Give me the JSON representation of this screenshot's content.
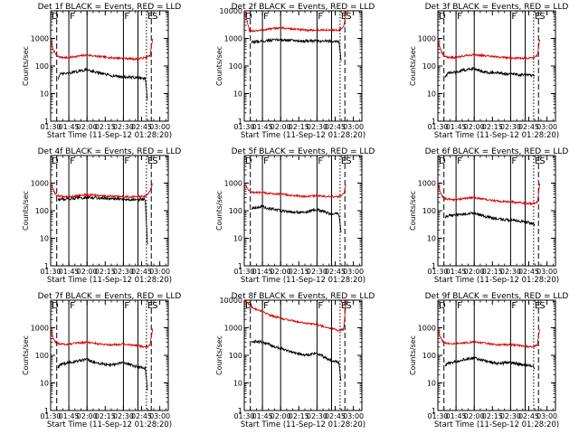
{
  "colors": {
    "events": "#000000",
    "lld": "#dd0000",
    "axis": "#000000",
    "background": "#ffffff"
  },
  "xlabel": "Start Time (11-Sep-12 01:28:20)",
  "ylabel": "Counts/sec",
  "x_tick_labels": [
    "01:30",
    "01:45",
    "02:00",
    "02:15",
    "02:30",
    "02:45",
    "03:00"
  ],
  "y_tick_labels": [
    "1",
    "10",
    "100",
    "1000",
    "10000"
  ],
  "chart_data": [
    {
      "type": "line",
      "title": "Det 1f BLACK = Events, RED = LLD",
      "x_unit": "minutes after 01:30",
      "xlim": [
        0,
        97
      ],
      "ylim": [
        1,
        10000
      ],
      "ylog": true,
      "y_max_label": "1000",
      "markers": [
        {
          "label": "D",
          "x": 0,
          "style": "solid"
        },
        {
          "label": "",
          "x": 5,
          "style": "dashed"
        },
        {
          "label": "F",
          "x": 15,
          "style": "solid"
        },
        {
          "label": "",
          "x": 30,
          "style": "solid"
        },
        {
          "label": "F",
          "x": 60,
          "style": "solid"
        },
        {
          "label": "",
          "x": 72,
          "style": "solid"
        },
        {
          "label": "E",
          "x": 79,
          "style": "dotted"
        },
        {
          "label": "S",
          "x": 83,
          "style": "dashed"
        }
      ],
      "series": [
        {
          "name": "LLD",
          "color": "red",
          "x": [
            0,
            2,
            4,
            5,
            8,
            15,
            20,
            30,
            40,
            50,
            60,
            70,
            78,
            82,
            84
          ],
          "values": [
            900,
            400,
            270,
            230,
            210,
            200,
            220,
            250,
            220,
            200,
            190,
            180,
            200,
            240,
            900
          ]
        },
        {
          "name": "Events",
          "color": "black",
          "x": [
            6,
            8,
            15,
            20,
            30,
            40,
            50,
            60,
            70,
            78,
            80
          ],
          "values": [
            35,
            50,
            55,
            60,
            75,
            55,
            45,
            40,
            38,
            36,
            5
          ]
        }
      ]
    },
    {
      "type": "line",
      "title": "Det 2f BLACK = Events, RED = LLD",
      "x_unit": "minutes after 01:30",
      "xlim": [
        0,
        97
      ],
      "ylim": [
        1,
        10000
      ],
      "ylog": true,
      "y_max_label": "10000",
      "markers": [
        {
          "label": "D",
          "x": 0,
          "style": "solid"
        },
        {
          "label": "",
          "x": 5,
          "style": "dashed"
        },
        {
          "label": "F",
          "x": 15,
          "style": "solid"
        },
        {
          "label": "",
          "x": 30,
          "style": "solid"
        },
        {
          "label": "F",
          "x": 60,
          "style": "solid"
        },
        {
          "label": "",
          "x": 72,
          "style": "solid"
        },
        {
          "label": "E",
          "x": 79,
          "style": "dotted"
        },
        {
          "label": "S",
          "x": 83,
          "style": "dashed"
        }
      ],
      "series": [
        {
          "name": "LLD",
          "color": "red",
          "x": [
            0,
            2,
            4,
            5,
            8,
            15,
            20,
            30,
            40,
            50,
            60,
            70,
            78,
            82,
            84
          ],
          "values": [
            10000,
            5000,
            2000,
            1800,
            1900,
            2000,
            2200,
            2400,
            2200,
            2000,
            2000,
            2000,
            2000,
            2500,
            10000
          ]
        },
        {
          "name": "Events",
          "color": "black",
          "x": [
            6,
            8,
            15,
            20,
            30,
            40,
            50,
            60,
            70,
            78,
            80
          ],
          "values": [
            700,
            750,
            800,
            850,
            900,
            850,
            800,
            800,
            800,
            800,
            150
          ]
        }
      ]
    },
    {
      "type": "line",
      "title": "Det 3f BLACK = Events, RED = LLD",
      "x_unit": "minutes after 01:30",
      "xlim": [
        0,
        97
      ],
      "ylim": [
        1,
        10000
      ],
      "ylog": true,
      "y_max_label": "1000",
      "markers": [
        {
          "label": "D",
          "x": 0,
          "style": "solid"
        },
        {
          "label": "",
          "x": 5,
          "style": "dashed"
        },
        {
          "label": "F",
          "x": 15,
          "style": "solid"
        },
        {
          "label": "",
          "x": 30,
          "style": "solid"
        },
        {
          "label": "F",
          "x": 60,
          "style": "solid"
        },
        {
          "label": "",
          "x": 72,
          "style": "solid"
        },
        {
          "label": "E",
          "x": 79,
          "style": "dotted"
        },
        {
          "label": "S",
          "x": 83,
          "style": "dashed"
        }
      ],
      "series": [
        {
          "name": "LLD",
          "color": "red",
          "x": [
            0,
            2,
            4,
            5,
            8,
            15,
            20,
            30,
            40,
            50,
            60,
            70,
            78,
            82,
            84
          ],
          "values": [
            900,
            400,
            270,
            230,
            210,
            200,
            230,
            260,
            230,
            210,
            200,
            190,
            200,
            240,
            900
          ]
        },
        {
          "name": "Events",
          "color": "black",
          "x": [
            6,
            8,
            15,
            20,
            30,
            40,
            50,
            60,
            70,
            78,
            80
          ],
          "values": [
            40,
            55,
            60,
            70,
            80,
            60,
            55,
            50,
            48,
            45,
            45
          ]
        }
      ]
    },
    {
      "type": "line",
      "title": "Det 4f BLACK = Events, RED = LLD",
      "x_unit": "minutes after 01:30",
      "xlim": [
        0,
        97
      ],
      "ylim": [
        1,
        10000
      ],
      "ylog": true,
      "y_max_label": "1000",
      "markers": [
        {
          "label": "D",
          "x": 0,
          "style": "solid"
        },
        {
          "label": "",
          "x": 5,
          "style": "dashed"
        },
        {
          "label": "F",
          "x": 15,
          "style": "solid"
        },
        {
          "label": "",
          "x": 30,
          "style": "solid"
        },
        {
          "label": "F",
          "x": 60,
          "style": "solid"
        },
        {
          "label": "",
          "x": 72,
          "style": "solid"
        },
        {
          "label": "E",
          "x": 79,
          "style": "dotted"
        },
        {
          "label": "S",
          "x": 83,
          "style": "dashed"
        }
      ],
      "series": [
        {
          "name": "LLD",
          "color": "red",
          "x": [
            0,
            2,
            4,
            5,
            8,
            15,
            20,
            30,
            40,
            50,
            60,
            70,
            78,
            82,
            84
          ],
          "values": [
            1000,
            600,
            400,
            350,
            330,
            320,
            340,
            380,
            350,
            330,
            320,
            320,
            330,
            500,
            1000
          ]
        },
        {
          "name": "Events",
          "color": "black",
          "x": [
            6,
            8,
            15,
            20,
            30,
            40,
            50,
            60,
            70,
            78,
            80
          ],
          "values": [
            250,
            260,
            270,
            280,
            300,
            290,
            270,
            260,
            255,
            255,
            4
          ]
        }
      ]
    },
    {
      "type": "line",
      "title": "Det 5f BLACK = Events, RED = LLD",
      "x_unit": "minutes after 01:30",
      "xlim": [
        0,
        97
      ],
      "ylim": [
        1,
        10000
      ],
      "ylog": true,
      "y_max_label": "1000",
      "markers": [
        {
          "label": "D",
          "x": 0,
          "style": "solid"
        },
        {
          "label": "",
          "x": 5,
          "style": "dashed"
        },
        {
          "label": "F",
          "x": 15,
          "style": "solid"
        },
        {
          "label": "",
          "x": 30,
          "style": "solid"
        },
        {
          "label": "F",
          "x": 60,
          "style": "solid"
        },
        {
          "label": "",
          "x": 72,
          "style": "solid"
        },
        {
          "label": "E",
          "x": 79,
          "style": "dotted"
        },
        {
          "label": "S",
          "x": 83,
          "style": "dashed"
        }
      ],
      "series": [
        {
          "name": "LLD",
          "color": "red",
          "x": [
            0,
            2,
            4,
            5,
            8,
            15,
            20,
            30,
            40,
            50,
            60,
            70,
            78,
            82,
            84
          ],
          "values": [
            1000,
            700,
            550,
            480,
            450,
            450,
            420,
            400,
            350,
            330,
            350,
            320,
            320,
            400,
            900
          ]
        },
        {
          "name": "Events",
          "color": "black",
          "x": [
            6,
            8,
            15,
            20,
            30,
            40,
            50,
            60,
            70,
            78,
            80
          ],
          "values": [
            120,
            130,
            140,
            120,
            100,
            90,
            85,
            110,
            80,
            75,
            15
          ]
        }
      ]
    },
    {
      "type": "line",
      "title": "Det 6f BLACK = Events, RED = LLD",
      "x_unit": "minutes after 01:30",
      "xlim": [
        0,
        97
      ],
      "ylim": [
        1,
        10000
      ],
      "ylog": true,
      "y_max_label": "1000",
      "markers": [
        {
          "label": "D",
          "x": 0,
          "style": "solid"
        },
        {
          "label": "",
          "x": 5,
          "style": "dashed"
        },
        {
          "label": "F",
          "x": 15,
          "style": "solid"
        },
        {
          "label": "",
          "x": 30,
          "style": "solid"
        },
        {
          "label": "F",
          "x": 60,
          "style": "solid"
        },
        {
          "label": "",
          "x": 72,
          "style": "solid"
        },
        {
          "label": "E",
          "x": 79,
          "style": "dotted"
        },
        {
          "label": "S",
          "x": 83,
          "style": "dashed"
        }
      ],
      "series": [
        {
          "name": "LLD",
          "color": "red",
          "x": [
            0,
            2,
            4,
            5,
            8,
            15,
            20,
            30,
            40,
            50,
            60,
            70,
            78,
            82,
            84
          ],
          "values": [
            1000,
            450,
            320,
            280,
            260,
            250,
            270,
            300,
            250,
            220,
            210,
            190,
            180,
            200,
            900
          ]
        },
        {
          "name": "Events",
          "color": "black",
          "x": [
            6,
            8,
            15,
            20,
            30,
            40,
            50,
            60,
            70,
            78,
            80
          ],
          "values": [
            60,
            65,
            70,
            75,
            80,
            60,
            50,
            45,
            40,
            35,
            30
          ]
        }
      ]
    },
    {
      "type": "line",
      "title": "Det 7f BLACK = Events, RED = LLD",
      "x_unit": "minutes after 01:30",
      "xlim": [
        0,
        97
      ],
      "ylim": [
        1,
        10000
      ],
      "ylog": true,
      "y_max_label": "1000",
      "markers": [
        {
          "label": "D",
          "x": 0,
          "style": "solid"
        },
        {
          "label": "",
          "x": 5,
          "style": "dashed"
        },
        {
          "label": "F",
          "x": 15,
          "style": "solid"
        },
        {
          "label": "",
          "x": 30,
          "style": "solid"
        },
        {
          "label": "F",
          "x": 60,
          "style": "solid"
        },
        {
          "label": "",
          "x": 72,
          "style": "solid"
        },
        {
          "label": "E",
          "x": 79,
          "style": "dotted"
        },
        {
          "label": "S",
          "x": 83,
          "style": "dashed"
        }
      ],
      "series": [
        {
          "name": "LLD",
          "color": "red",
          "x": [
            0,
            2,
            4,
            5,
            8,
            15,
            20,
            30,
            40,
            50,
            60,
            70,
            78,
            82,
            84
          ],
          "values": [
            1000,
            450,
            300,
            270,
            260,
            250,
            270,
            300,
            260,
            240,
            260,
            230,
            200,
            230,
            900
          ]
        },
        {
          "name": "Events",
          "color": "black",
          "x": [
            6,
            8,
            15,
            20,
            30,
            40,
            50,
            60,
            70,
            78,
            80
          ],
          "values": [
            35,
            45,
            55,
            60,
            70,
            50,
            45,
            55,
            40,
            35,
            5
          ]
        }
      ]
    },
    {
      "type": "line",
      "title": "Det 8f BLACK = Events, RED = LLD",
      "x_unit": "minutes after 01:30",
      "xlim": [
        0,
        97
      ],
      "ylim": [
        1,
        10000
      ],
      "ylog": true,
      "y_max_label": "10000",
      "markers": [
        {
          "label": "D",
          "x": 0,
          "style": "solid"
        },
        {
          "label": "",
          "x": 5,
          "style": "dashed"
        },
        {
          "label": "F",
          "x": 15,
          "style": "solid"
        },
        {
          "label": "",
          "x": 30,
          "style": "solid"
        },
        {
          "label": "F",
          "x": 60,
          "style": "solid"
        },
        {
          "label": "",
          "x": 72,
          "style": "solid"
        },
        {
          "label": "E",
          "x": 79,
          "style": "dotted"
        },
        {
          "label": "S",
          "x": 83,
          "style": "dashed"
        }
      ],
      "series": [
        {
          "name": "LLD",
          "color": "red",
          "x": [
            0,
            2,
            4,
            5,
            8,
            15,
            20,
            30,
            40,
            50,
            60,
            70,
            78,
            82,
            84
          ],
          "values": [
            10000,
            9000,
            7000,
            6000,
            5000,
            4000,
            3000,
            2200,
            1800,
            1500,
            1300,
            1000,
            800,
            900,
            10000
          ]
        },
        {
          "name": "Events",
          "color": "black",
          "x": [
            6,
            8,
            15,
            20,
            30,
            40,
            50,
            60,
            70,
            78,
            80
          ],
          "values": [
            300,
            320,
            300,
            250,
            180,
            130,
            100,
            120,
            70,
            55,
            10
          ]
        }
      ]
    },
    {
      "type": "line",
      "title": "Det 9f BLACK = Events, RED = LLD",
      "x_unit": "minutes after 01:30",
      "xlim": [
        0,
        97
      ],
      "ylim": [
        1,
        10000
      ],
      "ylog": true,
      "y_max_label": "1000",
      "markers": [
        {
          "label": "D",
          "x": 0,
          "style": "solid"
        },
        {
          "label": "",
          "x": 5,
          "style": "dashed"
        },
        {
          "label": "F",
          "x": 15,
          "style": "solid"
        },
        {
          "label": "",
          "x": 30,
          "style": "solid"
        },
        {
          "label": "F",
          "x": 60,
          "style": "solid"
        },
        {
          "label": "",
          "x": 72,
          "style": "solid"
        },
        {
          "label": "E",
          "x": 79,
          "style": "dotted"
        },
        {
          "label": "S",
          "x": 83,
          "style": "dashed"
        }
      ],
      "series": [
        {
          "name": "LLD",
          "color": "red",
          "x": [
            0,
            2,
            4,
            5,
            8,
            15,
            20,
            30,
            40,
            50,
            60,
            70,
            78,
            82,
            84
          ],
          "values": [
            1000,
            450,
            320,
            290,
            270,
            260,
            280,
            310,
            270,
            240,
            250,
            220,
            200,
            230,
            900
          ]
        },
        {
          "name": "Events",
          "color": "black",
          "x": [
            6,
            8,
            15,
            20,
            30,
            40,
            50,
            60,
            70,
            78,
            80
          ],
          "values": [
            40,
            50,
            60,
            70,
            80,
            60,
            50,
            55,
            45,
            40,
            35
          ]
        }
      ]
    }
  ]
}
